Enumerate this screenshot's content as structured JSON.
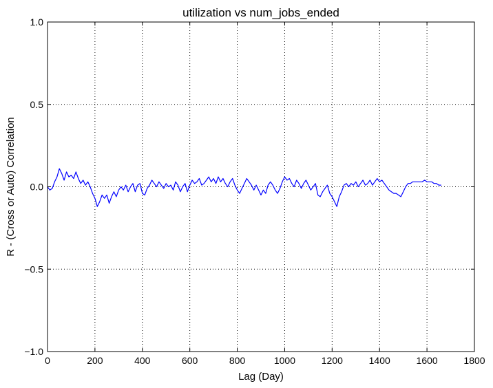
{
  "chart_data": {
    "type": "line",
    "title": "utilization vs num_jobs_ended",
    "xlabel": "Lag (Day)",
    "ylabel": "R - (Cross or Auto) Correlation",
    "xlim": [
      0,
      1800
    ],
    "ylim": [
      -1.0,
      1.0
    ],
    "grid": true,
    "xticks": [
      0,
      200,
      400,
      600,
      800,
      1000,
      1200,
      1400,
      1600,
      1800
    ],
    "xtick_labels": [
      "0",
      "200",
      "400",
      "600",
      "800",
      "1000",
      "1200",
      "1400",
      "1600",
      "1800"
    ],
    "yticks": [
      -1.0,
      -0.5,
      0.0,
      0.5,
      1.0
    ],
    "ytick_labels": [
      "−1.0",
      "−0.5",
      "0.0",
      "0.5",
      "1.0"
    ],
    "line_color": "#0000ff",
    "series": [
      {
        "name": "correlation",
        "x": [
          0,
          10,
          20,
          30,
          40,
          50,
          60,
          70,
          80,
          90,
          100,
          110,
          120,
          130,
          140,
          150,
          160,
          170,
          180,
          190,
          200,
          210,
          220,
          230,
          240,
          250,
          260,
          270,
          280,
          290,
          300,
          310,
          320,
          330,
          340,
          350,
          360,
          370,
          380,
          390,
          400,
          410,
          420,
          430,
          440,
          450,
          460,
          470,
          480,
          490,
          500,
          510,
          520,
          530,
          540,
          550,
          560,
          570,
          580,
          590,
          600,
          610,
          620,
          630,
          640,
          650,
          660,
          670,
          680,
          690,
          700,
          710,
          720,
          730,
          740,
          750,
          760,
          770,
          780,
          790,
          800,
          810,
          820,
          830,
          840,
          850,
          860,
          870,
          880,
          890,
          900,
          910,
          920,
          930,
          940,
          950,
          960,
          970,
          980,
          990,
          1000,
          1010,
          1020,
          1030,
          1040,
          1050,
          1060,
          1070,
          1080,
          1090,
          1100,
          1110,
          1120,
          1130,
          1140,
          1150,
          1160,
          1170,
          1180,
          1190,
          1200,
          1210,
          1220,
          1230,
          1240,
          1250,
          1260,
          1270,
          1280,
          1290,
          1300,
          1310,
          1320,
          1330,
          1340,
          1350,
          1360,
          1370,
          1380,
          1390,
          1400,
          1410,
          1420,
          1430,
          1440,
          1450,
          1460,
          1470,
          1480,
          1490,
          1500,
          1510,
          1520,
          1530,
          1540,
          1550,
          1560,
          1570,
          1580,
          1590,
          1600,
          1610,
          1620,
          1630,
          1640,
          1650,
          1660
        ],
        "y": [
          0.0,
          -0.02,
          -0.01,
          0.03,
          0.06,
          0.11,
          0.08,
          0.04,
          0.09,
          0.06,
          0.07,
          0.05,
          0.09,
          0.05,
          0.02,
          0.04,
          0.01,
          0.03,
          0.0,
          -0.04,
          -0.07,
          -0.12,
          -0.09,
          -0.05,
          -0.07,
          -0.05,
          -0.1,
          -0.06,
          -0.03,
          -0.06,
          -0.02,
          0.0,
          -0.02,
          0.01,
          -0.03,
          0.0,
          0.02,
          -0.03,
          0.01,
          0.02,
          -0.04,
          -0.05,
          -0.01,
          0.01,
          0.04,
          0.02,
          0.0,
          0.03,
          0.01,
          -0.01,
          0.02,
          0.0,
          0.01,
          -0.02,
          0.03,
          0.01,
          -0.03,
          0.0,
          0.02,
          -0.03,
          0.01,
          0.04,
          0.02,
          0.03,
          0.05,
          0.01,
          0.02,
          0.04,
          0.06,
          0.03,
          0.05,
          0.02,
          0.06,
          0.03,
          0.05,
          0.02,
          0.0,
          0.03,
          0.05,
          0.01,
          -0.02,
          -0.04,
          -0.01,
          0.02,
          0.05,
          0.03,
          0.01,
          -0.02,
          0.01,
          -0.02,
          -0.05,
          -0.02,
          -0.04,
          0.01,
          0.03,
          0.01,
          -0.02,
          -0.04,
          -0.01,
          0.03,
          0.06,
          0.04,
          0.05,
          0.02,
          0.0,
          0.04,
          0.02,
          -0.01,
          0.02,
          0.04,
          0.01,
          -0.02,
          0.0,
          0.02,
          -0.05,
          -0.06,
          -0.03,
          -0.01,
          0.01,
          -0.04,
          -0.06,
          -0.09,
          -0.12,
          -0.06,
          -0.03,
          0.01,
          0.02,
          0.0,
          0.02,
          0.01,
          0.03,
          0.0,
          0.02,
          0.04,
          0.01,
          0.02,
          0.04,
          0.01,
          0.03,
          0.05,
          0.03,
          0.04,
          0.02,
          0.0,
          -0.02,
          -0.03,
          -0.04,
          -0.04,
          -0.05,
          -0.06,
          -0.03,
          0.0,
          0.02,
          0.02,
          0.03,
          0.03,
          0.03,
          0.03,
          0.03,
          0.04,
          0.03,
          0.03,
          0.03,
          0.02,
          0.02,
          0.01,
          0.01
        ]
      }
    ]
  }
}
